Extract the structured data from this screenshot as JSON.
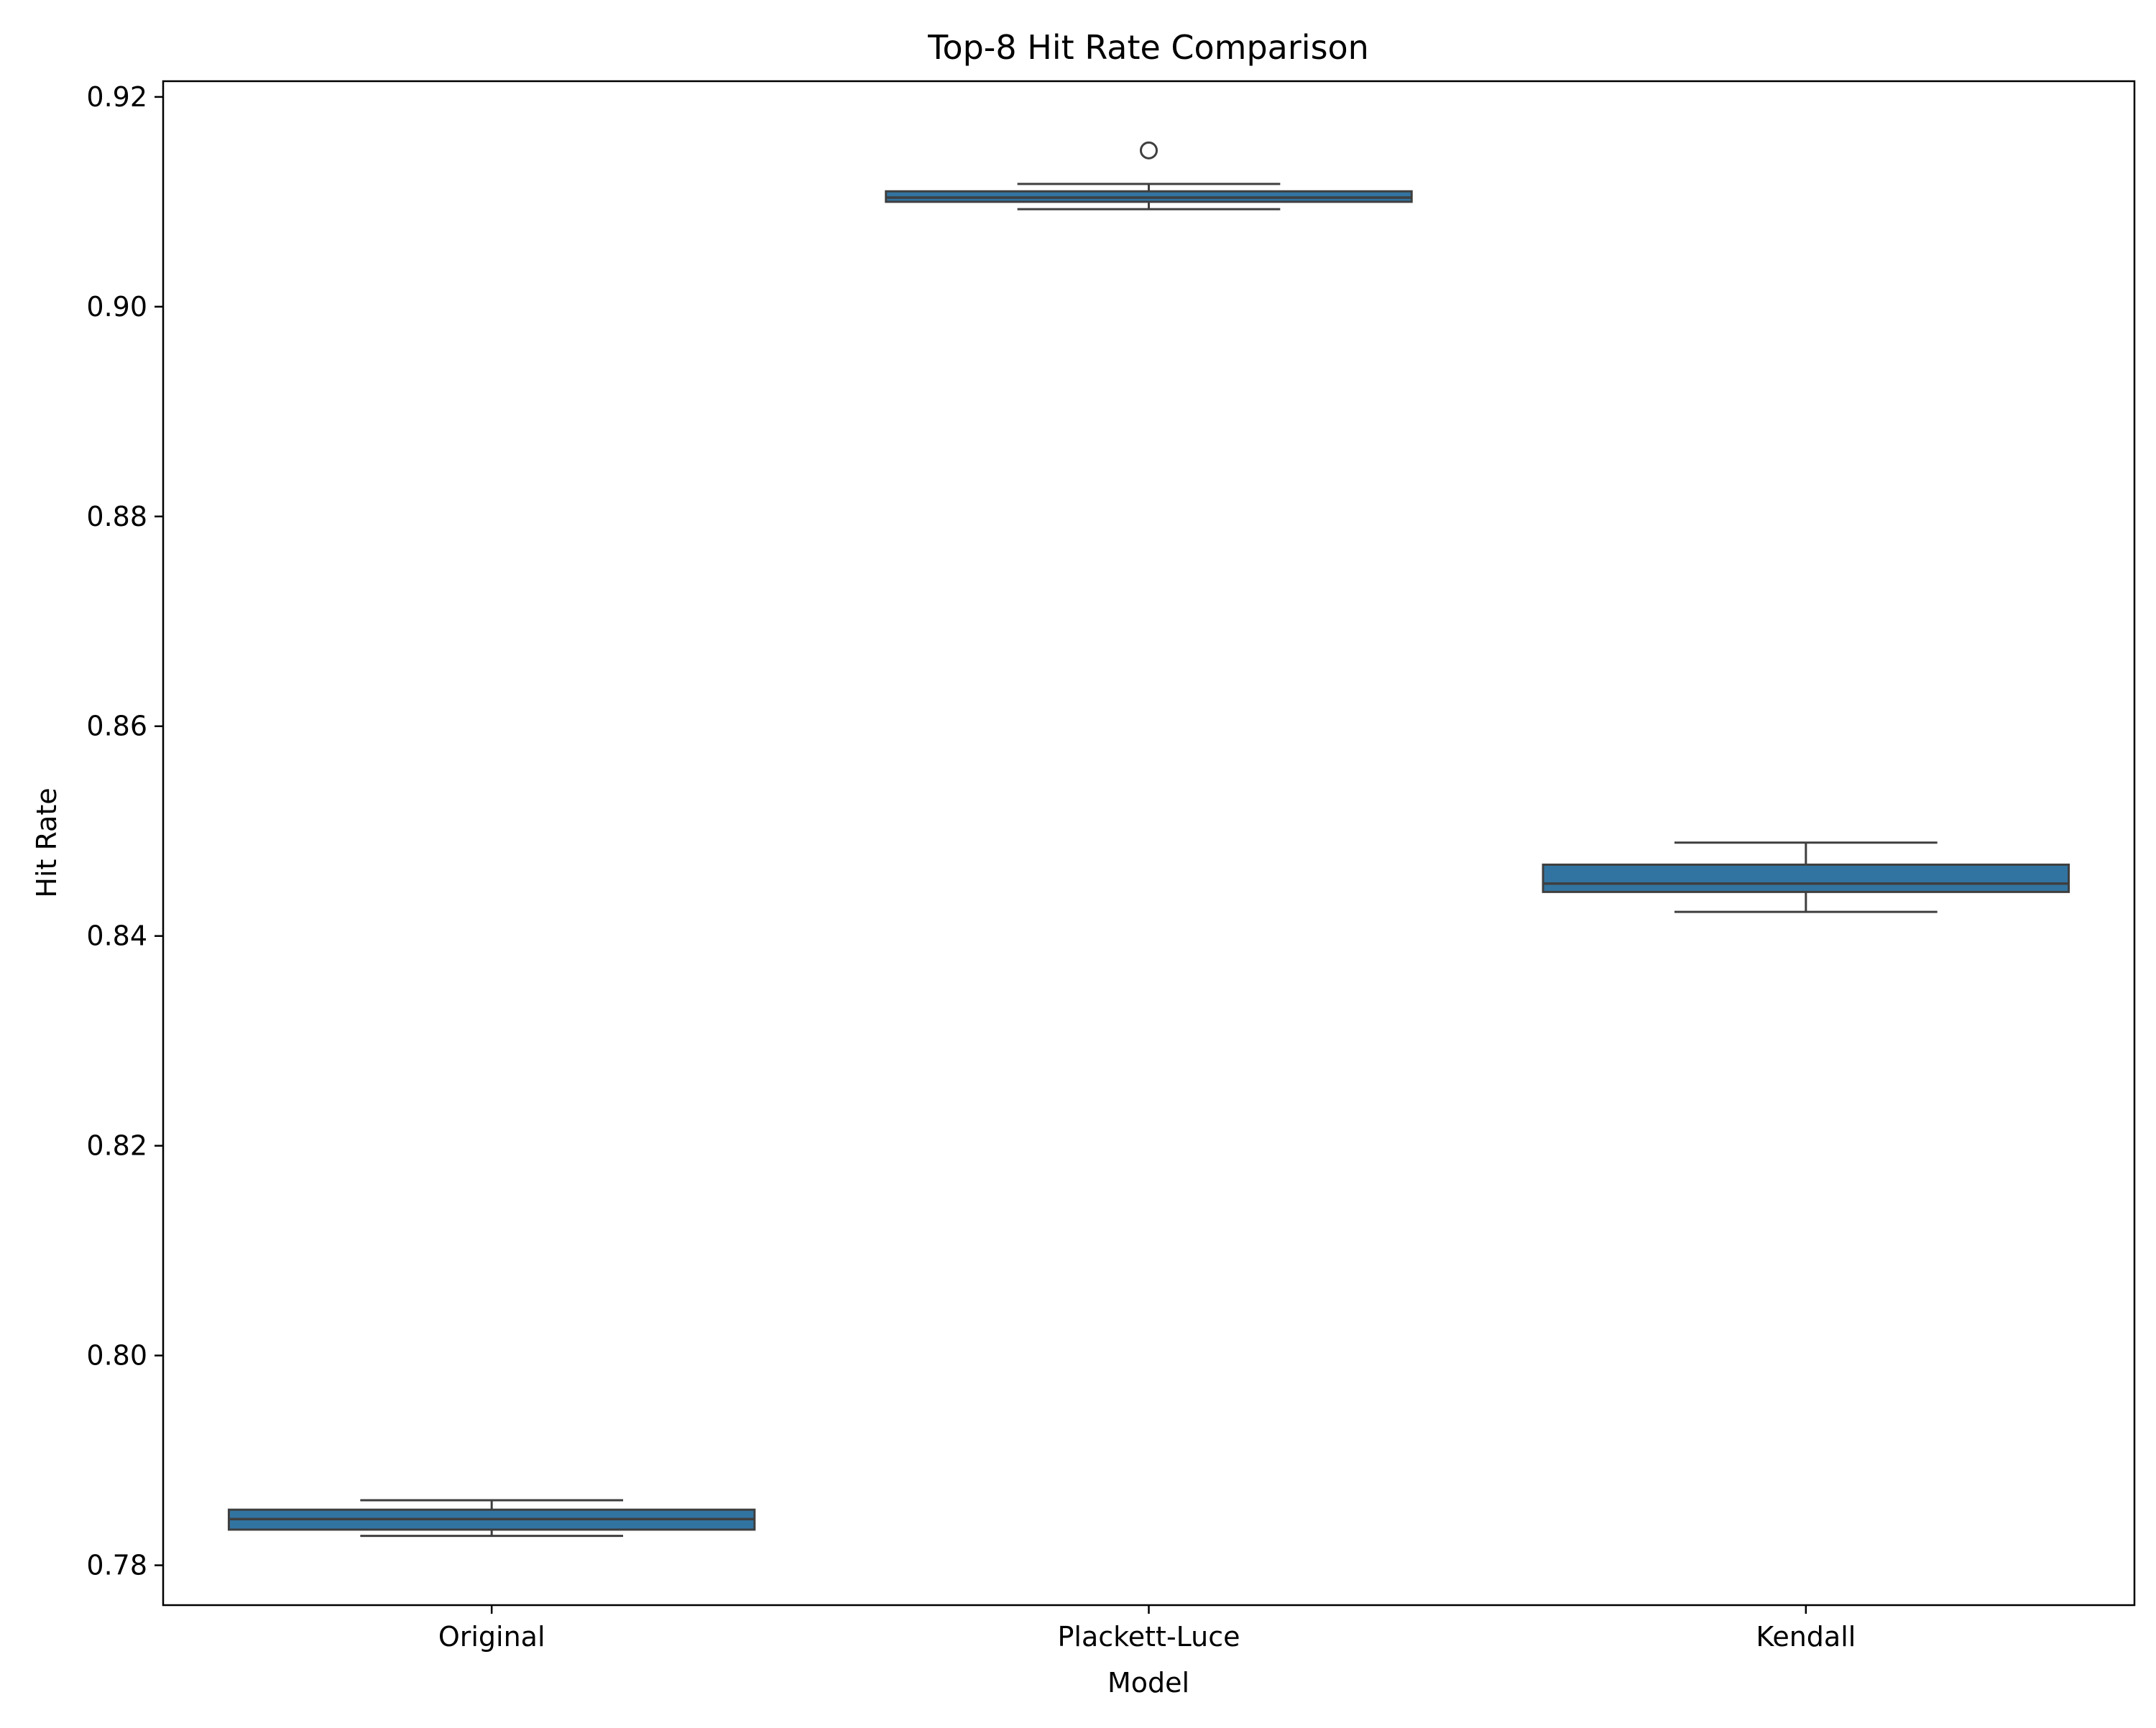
{
  "chart_data": {
    "type": "box",
    "title": "Top-8 Hit Rate Comparison",
    "xlabel": "Model",
    "ylabel": "Hit Rate",
    "ylim": [
      0.7762,
      0.9215
    ],
    "y_ticks": [
      0.78,
      0.8,
      0.82,
      0.84,
      0.86,
      0.88,
      0.9,
      0.92
    ],
    "y_tick_labels": [
      "0.78",
      "0.80",
      "0.82",
      "0.84",
      "0.86",
      "0.88",
      "0.90",
      "0.92"
    ],
    "categories": [
      "Original",
      "Plackett-Luce",
      "Kendall"
    ],
    "grid": false,
    "box_color": "#3274a1",
    "edge_color": "#3f3f3f",
    "boxes": [
      {
        "category": "Original",
        "whisker_low": 0.7828,
        "q1": 0.7834,
        "median": 0.7844,
        "q3": 0.7853,
        "whisker_high": 0.7862,
        "outliers": []
      },
      {
        "category": "Plackett-Luce",
        "whisker_low": 0.9093,
        "q1": 0.91,
        "median": 0.9104,
        "q3": 0.911,
        "whisker_high": 0.9117,
        "outliers": [
          0.9149
        ]
      },
      {
        "category": "Kendall",
        "whisker_low": 0.8423,
        "q1": 0.8442,
        "median": 0.845,
        "q3": 0.8468,
        "whisker_high": 0.8489,
        "outliers": []
      }
    ]
  }
}
